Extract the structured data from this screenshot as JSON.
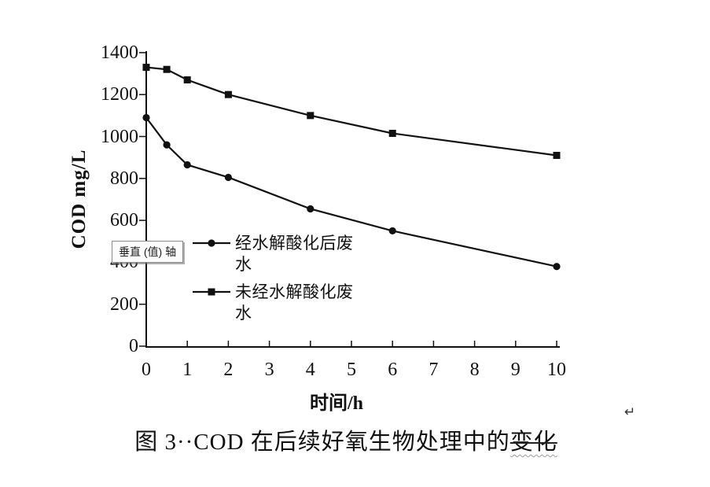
{
  "tooltip": {
    "text": "垂直 (值) 轴"
  },
  "annotations": {
    "return_mark": "↵"
  },
  "chart_data": {
    "type": "line",
    "title": "图 3··COD 在后续好氧生物处理中的变化",
    "title_prefix": "图 3··COD 在后续好氧生物处理中的",
    "title_struck": "变化",
    "xlabel": "时间/h",
    "ylabel": "COD mg/L",
    "x": [
      0,
      0.5,
      1,
      2,
      4,
      6,
      10
    ],
    "series": [
      {
        "name": "经水解酸化后废水",
        "marker": "circle",
        "values": [
          1090,
          960,
          865,
          805,
          655,
          550,
          380
        ]
      },
      {
        "name": "未经水解酸化废水",
        "marker": "square",
        "values": [
          1330,
          1320,
          1270,
          1200,
          1100,
          1015,
          910
        ]
      }
    ],
    "xlim": [
      0,
      10
    ],
    "ylim": [
      0,
      1400
    ],
    "x_ticks": [
      0,
      1,
      2,
      3,
      4,
      5,
      6,
      7,
      8,
      9,
      10
    ],
    "y_ticks": [
      0,
      200,
      400,
      600,
      800,
      1000,
      1200,
      1400
    ],
    "grid": false,
    "legend_position": "inside-bottom-left",
    "ink_color": "#111111",
    "background_color": "#ffffff"
  }
}
